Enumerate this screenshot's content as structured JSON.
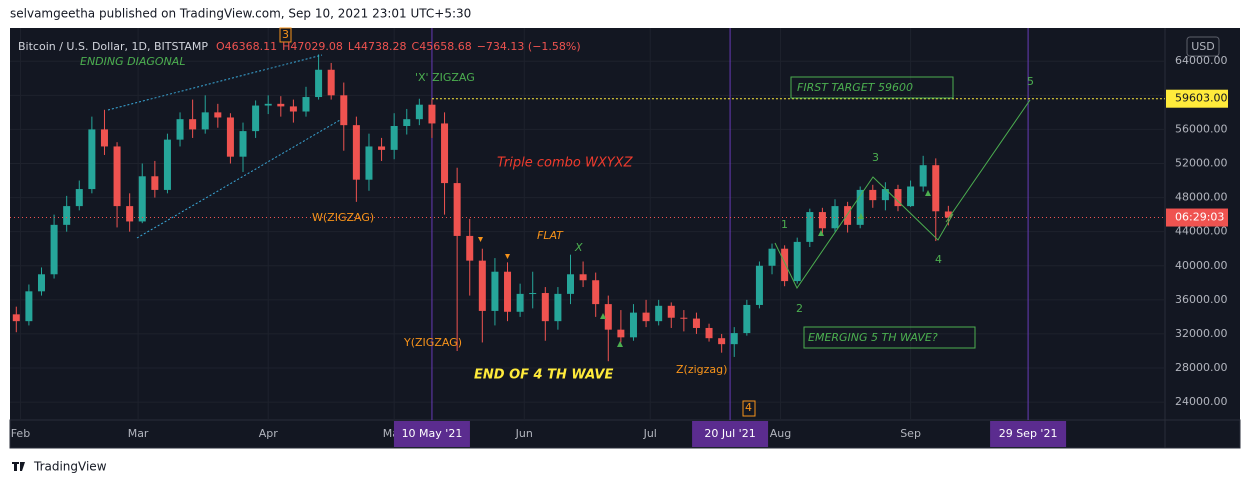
{
  "header": {
    "byline": "selvamgeetha published on TradingView.com, Sep 10, 2021 23:01 UTC+5:30",
    "brand": "TradingView"
  },
  "chart_data": {
    "type": "candlestick",
    "legend": {
      "symbol": "Bitcoin / U.S. Dollar, 1D, BITSTAMP",
      "ohlc": [
        "O46368.11",
        "H47029.08",
        "L44738.28",
        "C45658.68",
        "−734.13 (−1.58%)"
      ]
    },
    "currency": "USD",
    "open": [
      34300,
      33500,
      37000,
      39000,
      44800,
      47000,
      49000,
      56000,
      54000,
      47000,
      45200,
      50500,
      48900,
      54800,
      57200,
      56000,
      58000,
      57400,
      52800,
      55800,
      58800,
      59000,
      58700,
      58100,
      59800,
      63000,
      60000,
      56500,
      50100,
      54000,
      53600,
      56400,
      57200,
      58900,
      56700,
      49700,
      43500,
      40600,
      34700,
      39300,
      34600,
      36700,
      36800,
      33500,
      36700,
      39000,
      38300,
      35500,
      32500,
      31600,
      34500,
      33500,
      35300,
      33900,
      33800,
      32700,
      31500,
      30800,
      32100,
      35400,
      40000,
      42000,
      38200,
      42800,
      46300,
      44400,
      47000,
      44800,
      48900,
      47700,
      49000,
      47000,
      49300,
      51800,
      46368.11
    ],
    "high": [
      35200,
      37800,
      39800,
      46000,
      48200,
      50000,
      57500,
      58300,
      54500,
      48500,
      52000,
      52300,
      55500,
      58000,
      59500,
      60000,
      59000,
      57900,
      56800,
      59400,
      60000,
      59900,
      59500,
      61000,
      64800,
      63800,
      61500,
      57500,
      55500,
      55000,
      57900,
      58400,
      59600,
      59500,
      58000,
      51500,
      45500,
      42000,
      40900,
      40400,
      37900,
      39300,
      37500,
      37500,
      41300,
      40500,
      39200,
      36500,
      34800,
      35500,
      36000,
      36000,
      35700,
      34800,
      34500,
      33200,
      32000,
      32800,
      36000,
      40500,
      42600,
      42400,
      43300,
      46700,
      46800,
      47800,
      47500,
      49300,
      49500,
      49800,
      49500,
      50000,
      52900,
      52600,
      47029.08
    ],
    "low": [
      32200,
      33000,
      36500,
      38500,
      44000,
      46500,
      48500,
      53000,
      44500,
      44000,
      45000,
      48000,
      48500,
      54000,
      55000,
      55500,
      56200,
      52000,
      51000,
      55000,
      57800,
      57500,
      56800,
      57500,
      59500,
      59500,
      53500,
      47500,
      48800,
      52300,
      52500,
      55400,
      56500,
      55000,
      46000,
      30000,
      36500,
      31000,
      33000,
      33500,
      34000,
      35000,
      31200,
      32500,
      35500,
      37500,
      34000,
      28800,
      31000,
      31200,
      32800,
      33000,
      32700,
      32300,
      32000,
      31100,
      29800,
      29300,
      31800,
      35000,
      39000,
      37600,
      37900,
      42200,
      43800,
      44000,
      43900,
      44400,
      46800,
      46500,
      46400,
      46900,
      48700,
      42900,
      44738.28
    ],
    "close": [
      33500,
      37000,
      39000,
      44800,
      47000,
      49000,
      56000,
      54000,
      47000,
      45200,
      50500,
      48900,
      54800,
      57200,
      56000,
      58000,
      57400,
      52800,
      55800,
      58800,
      59000,
      58700,
      58100,
      59800,
      63000,
      60000,
      56500,
      50100,
      54000,
      53600,
      56400,
      57200,
      58900,
      56700,
      49700,
      43500,
      40600,
      34700,
      39300,
      34600,
      36700,
      36800,
      33500,
      36700,
      39000,
      38300,
      35500,
      32500,
      31600,
      34500,
      33500,
      35300,
      33900,
      33800,
      32700,
      31500,
      30800,
      32100,
      35400,
      40000,
      42000,
      38200,
      42800,
      46300,
      44400,
      47000,
      44800,
      48900,
      47700,
      49000,
      47000,
      49300,
      51800,
      46392.81,
      45658.68
    ],
    "up_color": "#26a69a",
    "down_color": "#ef5350",
    "xlim": [
      -0.5,
      91.2
    ],
    "xticks": [
      {
        "value": 0.33,
        "label": "Feb"
      },
      {
        "value": 9.67,
        "label": "Mar"
      },
      {
        "value": 20,
        "label": "Apr"
      },
      {
        "value": 30,
        "label": "May"
      },
      {
        "value": 40.33,
        "label": "Jun"
      },
      {
        "value": 50.33,
        "label": "Jul"
      },
      {
        "value": 60.67,
        "label": "Aug"
      },
      {
        "value": 71,
        "label": "Sep"
      }
    ],
    "markers": [
      {
        "value": 33,
        "label": "10 May '21"
      },
      {
        "value": 56.67,
        "label": "20 Jul '21"
      },
      {
        "value": 80.33,
        "label": "29 Sep '21"
      }
    ],
    "ylim": [
      21900,
      67900
    ],
    "yticks": [
      {
        "value": 24000,
        "label": "24000.00"
      },
      {
        "value": 28000,
        "label": "28000.00"
      },
      {
        "value": 32000,
        "label": "32000.00"
      },
      {
        "value": 36000,
        "label": "36000.00"
      },
      {
        "value": 40000,
        "label": "40000.00"
      },
      {
        "value": 44000,
        "label": "44000.00"
      },
      {
        "value": 48000,
        "label": "48000.00"
      },
      {
        "value": 52000,
        "label": "52000.00"
      },
      {
        "value": 56000,
        "label": "56000.00"
      },
      {
        "value": 60000,
        "label": "60000.00"
      },
      {
        "value": 64000,
        "label": "64000.00"
      }
    ],
    "target_line": {
      "value": 59603,
      "label": "59603.00"
    },
    "countdown": "06:29:03",
    "annotations": [
      "ENDING DIAGONAL",
      "'X' ZIGZAG",
      "FIRST TARGET 59600",
      "Triple combo  WXYXZ",
      "W(ZIGZAG)",
      "FLAT",
      "X",
      "Y(ZIGZAG)",
      "END OF 4 TH WAVE",
      "Z(zigzag)",
      "EMERGING 5 TH WAVE?",
      "1",
      "2",
      "3",
      "4",
      "5",
      "3",
      "4"
    ]
  }
}
